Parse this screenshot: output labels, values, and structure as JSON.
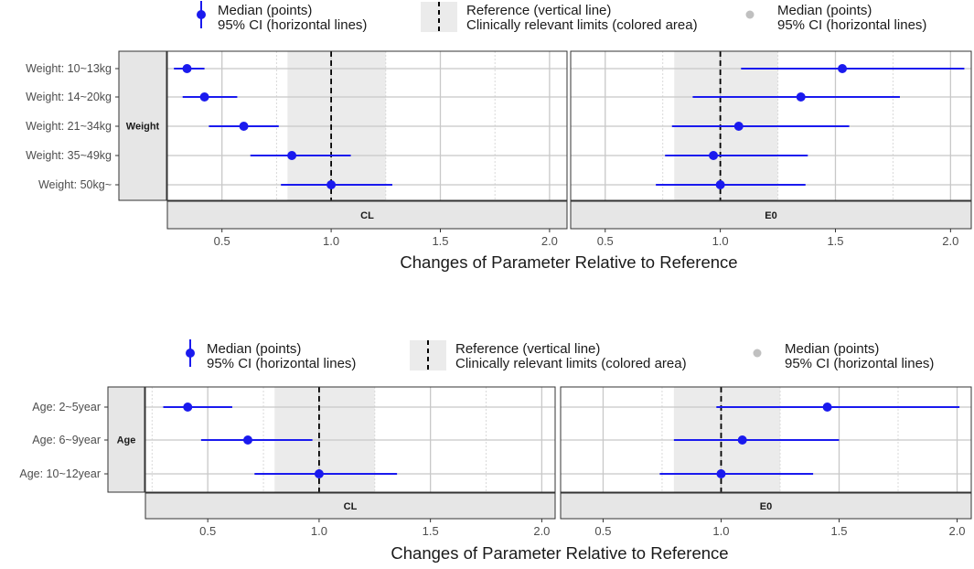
{
  "colors": {
    "point": "#1a1aee",
    "legend_grey_point": "#c0c0c0",
    "band": "#ebebeb",
    "grid": "#c8c8c8",
    "grid_minor": "#d9d9d9",
    "strip": "#e6e6e6",
    "text": "#4d4d4d",
    "axis_title": "#1a1a1a"
  },
  "chart_data": [
    {
      "type": "forest",
      "group_label": "Age",
      "legend": {
        "median_points": "Median (points)",
        "ci_lines": "95% CI (horizontal lines)",
        "reference": "Reference (vertical line)",
        "clinical_limits": "Clinically relevant limits (colored area)",
        "median_points_grey": "Median (points)",
        "ci_lines_grey": "95% CI (horizontal lines)"
      },
      "xlabel": "Changes of Parameter Relative to Reference",
      "reference_value": 1.0,
      "clinical_limits": [
        0.8,
        1.25
      ],
      "categories": [
        "Age: 2~5year",
        "Age: 6~9year",
        "Age: 10~12year"
      ],
      "panels": [
        {
          "label": "CL",
          "xlim": [
            0.22,
            2.06
          ],
          "ticks": [
            0.5,
            1.0,
            1.5,
            2.0
          ],
          "tick_labels": [
            "0.5",
            "1.0",
            "1.5",
            "2.0"
          ],
          "series": [
            {
              "median": 0.41,
              "lo": 0.3,
              "hi": 0.61
            },
            {
              "median": 0.68,
              "lo": 0.47,
              "hi": 0.97
            },
            {
              "median": 1.0,
              "lo": 0.71,
              "hi": 1.35
            }
          ]
        },
        {
          "label": "E0",
          "xlim": [
            0.32,
            2.06
          ],
          "ticks": [
            0.5,
            1.0,
            1.5,
            2.0
          ],
          "tick_labels": [
            "0.5",
            "1.0",
            "1.5",
            "2.0"
          ],
          "series": [
            {
              "median": 1.45,
              "lo": 0.98,
              "hi": 2.01
            },
            {
              "median": 1.09,
              "lo": 0.8,
              "hi": 1.5
            },
            {
              "median": 1.0,
              "lo": 0.74,
              "hi": 1.39
            }
          ]
        }
      ]
    },
    {
      "type": "forest",
      "group_label": "Weight",
      "legend": {
        "median_points": "Median (points)",
        "ci_lines": "95% CI (horizontal lines)",
        "reference": "Reference (vertical line)",
        "clinical_limits": "Clinically relevant limits (colored area)",
        "median_points_grey": "Median (points)",
        "ci_lines_grey": "95% CI (horizontal lines)"
      },
      "xlabel": "Changes of Parameter Relative to Reference",
      "reference_value": 1.0,
      "clinical_limits": [
        0.8,
        1.25
      ],
      "categories": [
        "Weight: 10~13kg",
        "Weight: 14~20kg",
        "Weight: 21~34kg",
        "Weight: 35~49kg",
        "Weight: 50kg~"
      ],
      "panels": [
        {
          "label": "CL",
          "xlim": [
            0.25,
            2.08
          ],
          "ticks": [
            0.5,
            1.0,
            1.5,
            2.0
          ],
          "tick_labels": [
            "0.5",
            "1.0",
            "1.5",
            "2.0"
          ],
          "series": [
            {
              "median": 0.34,
              "lo": 0.28,
              "hi": 0.42
            },
            {
              "median": 0.42,
              "lo": 0.32,
              "hi": 0.57
            },
            {
              "median": 0.6,
              "lo": 0.44,
              "hi": 0.76
            },
            {
              "median": 0.82,
              "lo": 0.63,
              "hi": 1.09
            },
            {
              "median": 1.0,
              "lo": 0.77,
              "hi": 1.28
            }
          ]
        },
        {
          "label": "E0",
          "xlim": [
            0.35,
            2.09
          ],
          "ticks": [
            0.5,
            1.0,
            1.5,
            2.0
          ],
          "tick_labels": [
            "0.5",
            "1.0",
            "1.5",
            "2.0"
          ],
          "series": [
            {
              "median": 1.53,
              "lo": 1.09,
              "hi": 2.06
            },
            {
              "median": 1.35,
              "lo": 0.88,
              "hi": 1.78
            },
            {
              "median": 1.08,
              "lo": 0.79,
              "hi": 1.56
            },
            {
              "median": 0.97,
              "lo": 0.76,
              "hi": 1.38
            },
            {
              "median": 1.0,
              "lo": 0.72,
              "hi": 1.37
            }
          ]
        }
      ]
    }
  ]
}
